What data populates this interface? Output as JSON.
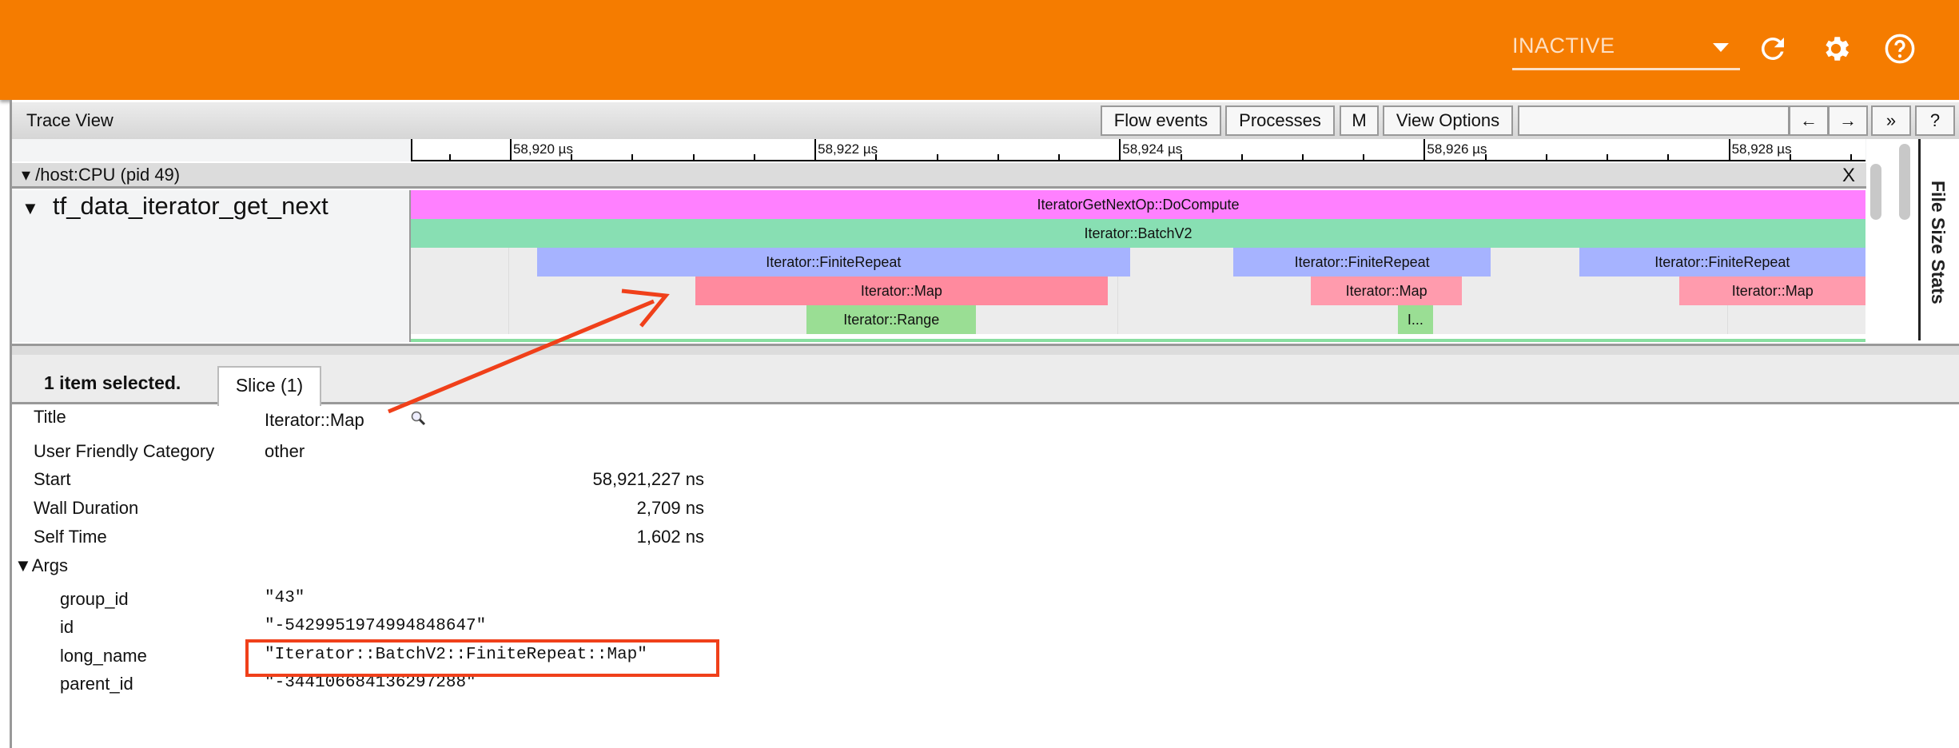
{
  "header": {
    "status_select": "INACTIVE",
    "icons": [
      "refresh-icon",
      "settings-gear-icon",
      "help-circle-icon"
    ],
    "brand_color": "#f57c00"
  },
  "toolbar": {
    "title": "Trace View",
    "flow_events": "Flow events",
    "processes": "Processes",
    "m": "M",
    "view_options": "View Options",
    "search_value": "",
    "prev": "←",
    "next": "→",
    "more": "»",
    "help": "?"
  },
  "ruler": {
    "unit": "µs",
    "ticks": [
      "58,920 µs",
      "58,922 µs",
      "58,924 µs",
      "58,926 µs",
      "58,928 µs"
    ],
    "tick_values": [
      58920,
      58922,
      58924,
      58926,
      58928
    ],
    "view_range_us": [
      58919.36,
      58928.91
    ]
  },
  "process": {
    "label": "/host:CPU (pid 49)",
    "close": "X"
  },
  "track": {
    "label": "tf_data_iterator_get_next",
    "slices": [
      {
        "name": "IteratorGetNextOp::DoCompute",
        "row": 0,
        "start_us": 58919.36,
        "end_us": 58928.91,
        "color": "#ff80ff"
      },
      {
        "name": "Iterator::BatchV2",
        "row": 1,
        "start_us": 58919.36,
        "end_us": 58928.91,
        "color": "#88dfb3"
      },
      {
        "name": "Iterator::FiniteRepeat",
        "row": 2,
        "start_us": 58920.19,
        "end_us": 58924.08,
        "color": "#a6b3ff"
      },
      {
        "name": "Iterator::FiniteRepeat",
        "row": 2,
        "start_us": 58924.76,
        "end_us": 58926.45,
        "color": "#a6b3ff"
      },
      {
        "name": "Iterator::FiniteRepeat",
        "row": 2,
        "start_us": 58927.03,
        "end_us": 58928.91,
        "color": "#a6b3ff"
      },
      {
        "name": "Iterator::Map",
        "row": 3,
        "start_us": 58921.227,
        "end_us": 58923.936,
        "color": "#ff8a9e"
      },
      {
        "name": "Iterator::Map",
        "row": 3,
        "start_us": 58925.27,
        "end_us": 58926.26,
        "color": "#ff9bad"
      },
      {
        "name": "Iterator::Map",
        "row": 3,
        "start_us": 58927.69,
        "end_us": 58928.91,
        "color": "#ff9bad"
      },
      {
        "name": "Iterator::Range",
        "row": 4,
        "start_us": 58921.96,
        "end_us": 58923.07,
        "color": "#9ade94"
      },
      {
        "name": "I...",
        "row": 4,
        "start_us": 58925.84,
        "end_us": 58926.07,
        "color": "#9ade94"
      }
    ]
  },
  "side_panel": {
    "label": "File Size Stats"
  },
  "details": {
    "selection": "1 item selected.",
    "tab": "Slice (1)",
    "rows": [
      {
        "label": "Title",
        "value": "Iterator::Map"
      },
      {
        "label": "User Friendly Category",
        "value": "other"
      },
      {
        "label": "Start",
        "value": "58,921,227 ns"
      },
      {
        "label": "Wall Duration",
        "value": "2,709 ns"
      },
      {
        "label": "Self Time",
        "value": "1,602 ns"
      }
    ],
    "args_label": "▼Args",
    "args": [
      {
        "key": "group_id",
        "value": "\"43\""
      },
      {
        "key": "id",
        "value": "\"-5429951974994848647\""
      },
      {
        "key": "long_name",
        "value": "\"Iterator::BatchV2::FiniteRepeat::Map\""
      },
      {
        "key": "parent_id",
        "value": "\"-344106684136297288\""
      }
    ]
  },
  "annotation": {
    "color": "#f0401a"
  }
}
